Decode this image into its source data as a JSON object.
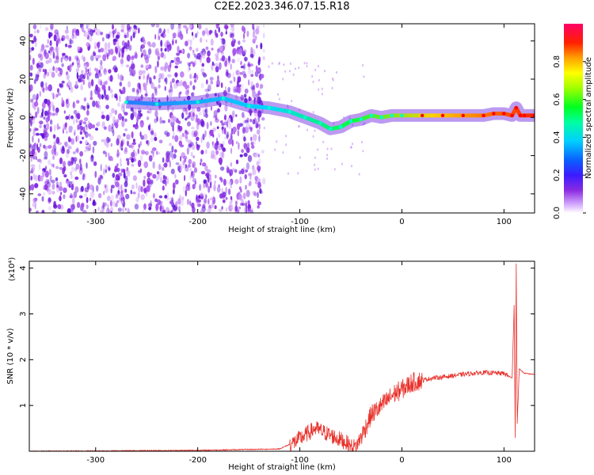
{
  "title": "C2E2.2023.346.07.15.R18",
  "colors": {
    "spectrum_low": "#8a2be2",
    "spectrum_high": "#ff0000",
    "snr_line": "#e8312b"
  },
  "chart_data": [
    {
      "type": "heatmap",
      "title": "",
      "xlabel": "Height of straight line (km)",
      "ylabel": "Frequency (Hz)",
      "xlim": [
        -365,
        130
      ],
      "ylim": [
        -50,
        49
      ],
      "xticks": [
        -300,
        -200,
        -100,
        0,
        100
      ],
      "yticks": [
        -40,
        -20,
        0,
        20,
        40
      ],
      "colorbar": {
        "label": "Normalized spectral amplitude",
        "range": [
          0.0,
          1.0
        ],
        "ticks": [
          0.0,
          0.2,
          0.4,
          0.6,
          0.8
        ]
      },
      "ridge": {
        "x": [
          -270,
          -240,
          -200,
          -175,
          -150,
          -130,
          -110,
          -95,
          -80,
          -70,
          -60,
          -50,
          -40,
          -30,
          -20,
          -10,
          0,
          20,
          40,
          60,
          80,
          90,
          100,
          108,
          112,
          116,
          120,
          130
        ],
        "y": [
          8,
          7,
          8,
          10,
          6,
          5,
          3,
          0,
          -3,
          -6,
          -5,
          -2,
          -1,
          1,
          0,
          1,
          1,
          1,
          1,
          1,
          1,
          2,
          2,
          1,
          5,
          1,
          1,
          1
        ]
      },
      "noise_region_x": [
        -365,
        -135
      ]
    },
    {
      "type": "line",
      "title": "",
      "xlabel": "Height of straight line (km)",
      "ylabel": "SNR (10 * v/v)",
      "multiplier": "(x10⁴)",
      "xlim": [
        -365,
        130
      ],
      "ylim": [
        0,
        4.15
      ],
      "xticks": [
        -300,
        -200,
        -100,
        0,
        100
      ],
      "yticks": [
        1,
        2,
        3,
        4
      ],
      "series": [
        {
          "x": [
            -365,
            -200,
            -120,
            -105,
            -95,
            -85,
            -75,
            -65,
            -55,
            -50,
            -45,
            -38,
            -30,
            -22,
            -15,
            -8,
            0,
            10,
            20,
            30,
            40,
            60,
            80,
            100,
            108,
            110,
            111,
            112,
            113,
            115,
            120,
            130
          ],
          "y": [
            0.0,
            0.02,
            0.05,
            0.2,
            0.35,
            0.5,
            0.4,
            0.3,
            0.2,
            0.1,
            0.1,
            0.4,
            0.8,
            0.95,
            1.1,
            1.25,
            1.35,
            1.5,
            1.55,
            1.6,
            1.62,
            1.68,
            1.72,
            1.7,
            1.6,
            3.2,
            0.3,
            4.1,
            0.6,
            1.8,
            1.7,
            1.68
          ]
        }
      ]
    }
  ]
}
